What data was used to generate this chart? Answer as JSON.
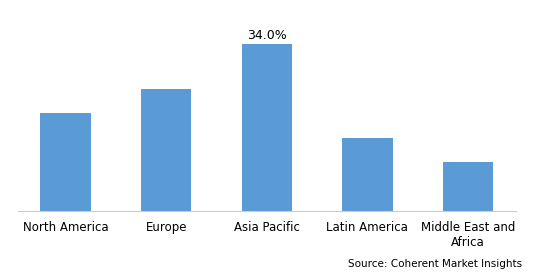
{
  "categories": [
    "North America",
    "Europe",
    "Asia Pacific",
    "Latin America",
    "Middle East and\nAfrica"
  ],
  "values": [
    20.0,
    25.0,
    34.0,
    15.0,
    10.0
  ],
  "bar_color": "#5b9bd5",
  "annotated_bar_index": 2,
  "annotation_text": "34.0%",
  "annotation_fontsize": 9,
  "bar_width": 0.5,
  "ylim": [
    0,
    40
  ],
  "background_color": "#ffffff",
  "source_text": "Source: Coherent Market Insights",
  "source_fontsize": 7.5,
  "tick_fontsize": 8.5,
  "fig_width": 5.38,
  "fig_height": 2.72
}
